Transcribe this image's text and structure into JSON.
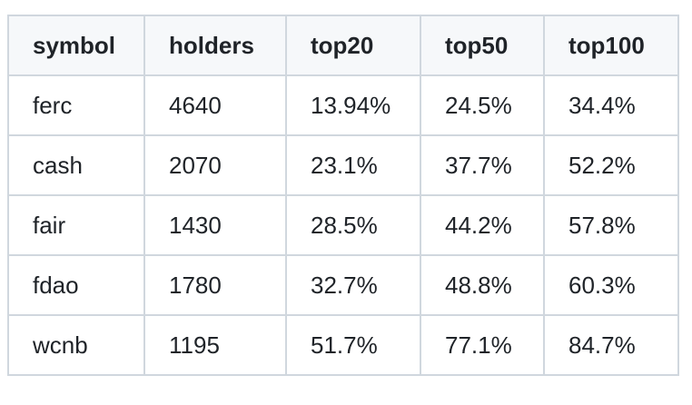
{
  "table": {
    "headers": [
      "symbol",
      "holders",
      "top20",
      "top50",
      "top100"
    ],
    "rows": [
      [
        "ferc",
        "4640",
        "13.94%",
        "24.5%",
        "34.4%"
      ],
      [
        "cash",
        "2070",
        "23.1%",
        "37.7%",
        "52.2%"
      ],
      [
        "fair",
        "1430",
        "28.5%",
        "44.2%",
        "57.8%"
      ],
      [
        "fdao",
        "1780",
        "32.7%",
        "48.8%",
        "60.3%"
      ],
      [
        "wcnb",
        "1195",
        "51.7%",
        "77.1%",
        "84.7%"
      ]
    ]
  }
}
